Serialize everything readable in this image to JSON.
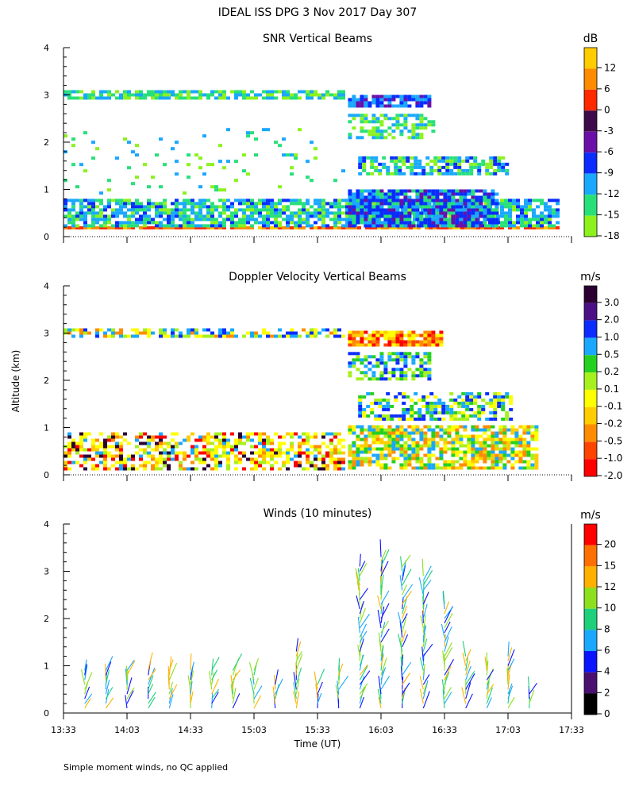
{
  "figure": {
    "title": "IDEAL ISS DPG    3 Nov 2017 Day 307",
    "footnote": "Simple moment winds, no QC applied",
    "xlabel": "Time (UT)",
    "ylabel": "Altitude (km)"
  },
  "chart_data": [
    {
      "type": "heatmap",
      "title": "SNR Vertical Beams",
      "xlabel": "Time (UT)",
      "ylabel": "Altitude (km)",
      "x_range": [
        "13:33",
        "17:33"
      ],
      "ylim": [
        0,
        4
      ],
      "y_ticks": [
        "0",
        "1",
        "2",
        "3",
        "4"
      ],
      "x_ticks": [
        "13:33",
        "14:03",
        "14:33",
        "15:03",
        "15:33",
        "16:03",
        "16:33",
        "17:03",
        "17:33"
      ],
      "colorbar": {
        "unit": "dB",
        "labels": [
          "12",
          "6",
          "0",
          "-3",
          "-6",
          "-9",
          "-12",
          "-15",
          "-18"
        ],
        "colors": [
          "#ffcc00",
          "#ff8c00",
          "#ff2a00",
          "#3c0a4a",
          "#6a10a8",
          "#0a2cff",
          "#1aa8ff",
          "#28e07a",
          "#8cf21e"
        ]
      },
      "regions": [
        {
          "t0": 0.0,
          "t1": 0.97,
          "z0": 0.16,
          "z1": 0.22,
          "palette": [
            0,
            1,
            2,
            1,
            2
          ],
          "density": 0.95
        },
        {
          "t0": 0.0,
          "t1": 0.97,
          "z0": 0.22,
          "z1": 0.8,
          "palette": [
            6,
            7,
            8,
            7,
            6,
            5
          ],
          "density": 0.75
        },
        {
          "t0": 0.56,
          "t1": 0.85,
          "z0": 0.2,
          "z1": 1.0,
          "palette": [
            5,
            6,
            4,
            7,
            5
          ],
          "density": 0.9
        },
        {
          "t0": 0.0,
          "t1": 0.55,
          "z0": 2.95,
          "z1": 3.1,
          "palette": [
            7,
            8,
            6
          ],
          "density": 0.75
        },
        {
          "t0": 0.56,
          "t1": 0.72,
          "z0": 2.75,
          "z1": 3.0,
          "palette": [
            5,
            4,
            6
          ],
          "density": 0.85
        },
        {
          "t0": 0.56,
          "t1": 0.73,
          "z0": 2.1,
          "z1": 2.6,
          "palette": [
            7,
            8,
            6
          ],
          "density": 0.5
        },
        {
          "t0": 0.58,
          "t1": 0.87,
          "z0": 1.3,
          "z1": 1.7,
          "palette": [
            6,
            5,
            7,
            8
          ],
          "density": 0.7
        },
        {
          "t0": 0.0,
          "t1": 0.55,
          "z0": 0.9,
          "z1": 2.3,
          "palette": [
            7,
            8,
            6
          ],
          "density": 0.05
        }
      ]
    },
    {
      "type": "heatmap",
      "title": "Doppler Velocity Vertical Beams",
      "xlabel": "Time (UT)",
      "ylabel": "Altitude (km)",
      "x_range": [
        "13:33",
        "17:33"
      ],
      "ylim": [
        0,
        4
      ],
      "y_ticks": [
        "0",
        "1",
        "2",
        "3",
        "4"
      ],
      "x_ticks": [
        "13:33",
        "14:03",
        "14:33",
        "15:03",
        "15:33",
        "16:03",
        "16:33",
        "17:03",
        "17:33"
      ],
      "colorbar": {
        "unit": "m/s",
        "labels": [
          "3.0",
          "2.0",
          "1.0",
          "0.5",
          "0.2",
          "0.1",
          "-0.1",
          "-0.2",
          "-0.5",
          "-1.0",
          "-2.0"
        ],
        "colors": [
          "#2a0033",
          "#4a1088",
          "#0a2cff",
          "#1aa8ff",
          "#24d020",
          "#a6f01e",
          "#ffff00",
          "#ffcc00",
          "#ff8c00",
          "#ff4400",
          "#ff0000"
        ]
      },
      "regions": [
        {
          "t0": 0.0,
          "t1": 0.55,
          "z0": 0.15,
          "z1": 0.9,
          "palette": [
            6,
            7,
            6,
            5,
            8,
            3,
            10,
            0
          ],
          "density": 0.55
        },
        {
          "t0": 0.56,
          "t1": 0.93,
          "z0": 0.15,
          "z1": 1.05,
          "palette": [
            6,
            5,
            7,
            4,
            3,
            8
          ],
          "density": 0.75
        },
        {
          "t0": 0.0,
          "t1": 0.55,
          "z0": 2.95,
          "z1": 3.1,
          "palette": [
            6,
            3,
            8,
            2,
            5
          ],
          "density": 0.6
        },
        {
          "t0": 0.56,
          "t1": 0.74,
          "z0": 2.75,
          "z1": 3.05,
          "palette": [
            8,
            9,
            7,
            10,
            6
          ],
          "density": 0.85
        },
        {
          "t0": 0.56,
          "t1": 0.72,
          "z0": 2.05,
          "z1": 2.6,
          "palette": [
            4,
            3,
            5,
            2
          ],
          "density": 0.6
        },
        {
          "t0": 0.58,
          "t1": 0.88,
          "z0": 1.2,
          "z1": 1.75,
          "palette": [
            4,
            3,
            2,
            5,
            6
          ],
          "density": 0.6
        }
      ]
    },
    {
      "type": "wind_barbs",
      "title": "Winds (10 minutes)",
      "xlabel": "Time (UT)",
      "ylabel": "Altitude (km)",
      "x_range": [
        "13:33",
        "17:33"
      ],
      "ylim": [
        0,
        4
      ],
      "y_ticks": [
        "0",
        "1",
        "2",
        "3",
        "4"
      ],
      "x_ticks": [
        "13:33",
        "14:03",
        "14:33",
        "15:03",
        "15:33",
        "16:03",
        "16:33",
        "17:03",
        "17:33"
      ],
      "colorbar": {
        "unit": "m/s",
        "labels": [
          "20",
          "15",
          "12",
          "10",
          "8",
          "6",
          "4",
          "2",
          "0"
        ],
        "colors": [
          "#ff0000",
          "#ff7000",
          "#ffb000",
          "#8ce01e",
          "#1ed07a",
          "#1aa8ff",
          "#0a14ff",
          "#4a1070",
          "#000000"
        ]
      },
      "profile_times": [
        "13:43",
        "13:53",
        "14:03",
        "14:13",
        "14:23",
        "14:33",
        "14:43",
        "14:53",
        "15:03",
        "15:13",
        "15:23",
        "15:33",
        "15:43",
        "15:53",
        "16:03",
        "16:13",
        "16:23",
        "16:33",
        "16:43",
        "16:53",
        "17:03",
        "17:13"
      ],
      "profile_tops_km": [
        0.9,
        0.9,
        0.9,
        0.9,
        0.9,
        0.9,
        0.9,
        0.9,
        0.9,
        0.6,
        1.3,
        0.6,
        0.9,
        3.1,
        3.3,
        3.1,
        2.9,
        2.3,
        1.2,
        1.0,
        1.2,
        0.5
      ]
    }
  ]
}
